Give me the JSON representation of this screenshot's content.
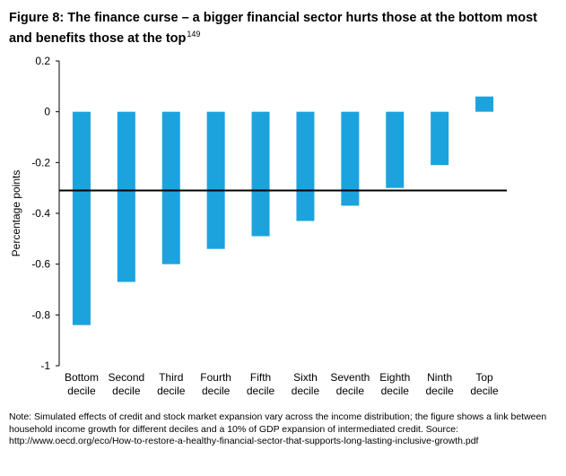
{
  "title": "Figure 8: The finance curse – a bigger financial sector hurts those at the bottom most and benefits those at the top",
  "title_footnote": "149",
  "note": "Note: Simulated effects of credit and stock market expansion vary across the income distribution; the figure shows a link between household income growth for different deciles and a 10% of GDP expansion of intermediated credit. Source: http://www.oecd.org/eco/How-to-restore-a-healthy-financial-sector-that-supports-long-lasting-inclusive-growth.pdf",
  "colors": {
    "bar": "#1ca3de",
    "axis": "#000000",
    "reference_line": "#000000"
  },
  "chart_data": {
    "type": "bar",
    "title": "Figure 8: The finance curse – a bigger financial sector hurts those at the bottom most and benefits those at the top",
    "xlabel": "",
    "ylabel": "Percentage points",
    "ylim": [
      -1,
      0.2
    ],
    "yticks": [
      0.2,
      0,
      -0.2,
      -0.4,
      -0.6,
      -0.8,
      -1
    ],
    "ytick_labels": [
      "0.2",
      "0",
      "-0.2",
      "-0.4",
      "-0.6",
      "-0.8",
      "-1"
    ],
    "categories": [
      "Bottom decile",
      "Second decile",
      "Third decile",
      "Fourth decile",
      "Fifth decile",
      "Sixth decile",
      "Seventh decile",
      "Eighth decile",
      "Ninth decile",
      "Top decile"
    ],
    "category_lines": [
      [
        "Bottom",
        "decile"
      ],
      [
        "Second",
        "decile"
      ],
      [
        "Third",
        "decile"
      ],
      [
        "Fourth",
        "decile"
      ],
      [
        "Fifth",
        "decile"
      ],
      [
        "Sixth",
        "decile"
      ],
      [
        "Seventh",
        "decile"
      ],
      [
        "Eighth",
        "decile"
      ],
      [
        "Ninth",
        "decile"
      ],
      [
        "Top",
        "decile"
      ]
    ],
    "values": [
      -0.84,
      -0.67,
      -0.6,
      -0.54,
      -0.49,
      -0.43,
      -0.37,
      -0.3,
      -0.21,
      0.06
    ],
    "reference_line": -0.31,
    "grid": false,
    "legend": "none"
  }
}
